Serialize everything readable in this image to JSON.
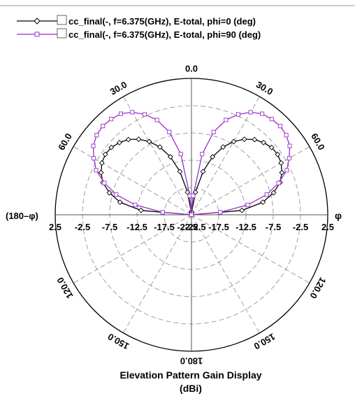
{
  "chart_data": {
    "type": "polar-line",
    "title": "Elevation Pattern Gain Display",
    "unit": "(dBi)",
    "left_axis_label": "(180–φ)",
    "right_axis_label": "φ",
    "r_min": -22.5,
    "r_max": 2.5,
    "r_step": 5,
    "radial_tick_labels": [
      "2.5",
      "-2.5",
      "-7.5",
      "-12.5",
      "-17.5",
      "-22.5",
      "-22.5",
      "-17.5",
      "-12.5",
      "-7.5",
      "-2.5",
      "2.5"
    ],
    "angle_labels": [
      "0.0",
      "30.0",
      "60.0",
      "120.0",
      "150.0",
      "180.0",
      "150.0",
      "120.0",
      "60.0",
      "30.0"
    ],
    "angle_label_theta": [
      0,
      30,
      60,
      120,
      150,
      180,
      -150,
      -120,
      -60,
      -30
    ],
    "grid": true,
    "legend_position": "top-left",
    "theta": [
      -90,
      -85,
      -80,
      -75,
      -70,
      -65,
      -60,
      -55,
      -50,
      -45,
      -40,
      -35,
      -30,
      -25,
      -20,
      -15,
      -10,
      -5,
      0,
      5,
      10,
      15,
      20,
      25,
      30,
      35,
      40,
      45,
      50,
      55,
      60,
      65,
      70,
      75,
      80,
      85,
      90
    ],
    "series": [
      {
        "name": "cc_final(-, f=6.375(GHz), E-total, phi=0 (deg)",
        "color": "#000000",
        "marker": "diamond",
        "values": [
          -22.5,
          -13.2,
          -9.2,
          -6.9,
          -5.2,
          -4.2,
          -3.5,
          -3.2,
          -3.3,
          -3.8,
          -4.5,
          -5.6,
          -7.0,
          -8.8,
          -11.2,
          -14.3,
          -18.3,
          -22.0,
          -22.5,
          -22.0,
          -18.3,
          -14.3,
          -11.2,
          -8.8,
          -7.0,
          -5.6,
          -4.5,
          -3.8,
          -3.3,
          -3.2,
          -3.5,
          -4.2,
          -5.2,
          -6.9,
          -9.2,
          -13.2,
          -22.5
        ]
      },
      {
        "name": "cc_final(-, f=6.375(GHz), E-total, phi=90 (deg)",
        "color": "#9b30c8",
        "marker": "square",
        "values": [
          -22.5,
          -17.2,
          -12.0,
          -8.2,
          -5.5,
          -3.2,
          -1.8,
          -0.5,
          0.2,
          0.5,
          0.4,
          0.1,
          -0.8,
          -2.2,
          -4.0,
          -6.8,
          -11.2,
          -19.0,
          -22.5,
          -19.0,
          -11.2,
          -6.8,
          -4.0,
          -2.2,
          -0.8,
          0.1,
          0.4,
          0.5,
          0.2,
          -0.5,
          -1.8,
          -3.2,
          -5.5,
          -8.2,
          -12.0,
          -17.2,
          -22.5
        ]
      }
    ]
  }
}
